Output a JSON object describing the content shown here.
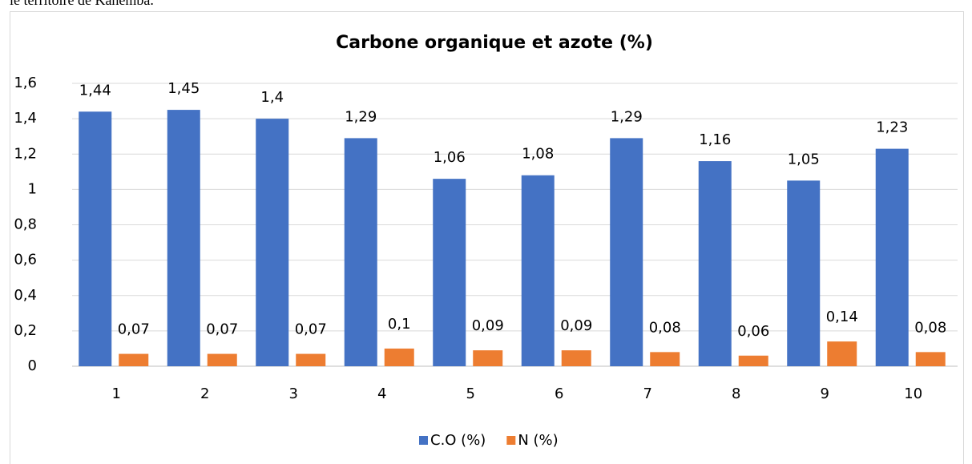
{
  "caption": "le territoire de Kahemba.",
  "chart_data": {
    "type": "bar",
    "title": "Carbone organique et azote (%)",
    "categories": [
      "1",
      "2",
      "3",
      "4",
      "5",
      "6",
      "7",
      "8",
      "9",
      "10"
    ],
    "series": [
      {
        "name": "C.O (%)",
        "color": "#4472c4",
        "values": [
          1.44,
          1.45,
          1.4,
          1.29,
          1.06,
          1.08,
          1.29,
          1.16,
          1.05,
          1.23
        ],
        "value_labels": [
          "1,44",
          "1,45",
          "1,4",
          "1,29",
          "1,06",
          "1,08",
          "1,29",
          "1,16",
          "1,05",
          "1,23"
        ]
      },
      {
        "name": "N (%)",
        "color": "#ed7d31",
        "values": [
          0.07,
          0.07,
          0.07,
          0.1,
          0.09,
          0.09,
          0.08,
          0.06,
          0.14,
          0.08
        ],
        "value_labels": [
          "0,07",
          "0,07",
          "0,07",
          "0,1",
          "0,09",
          "0,09",
          "0,08",
          "0,06",
          "0,14",
          "0,08"
        ]
      }
    ],
    "ylim": [
      0,
      1.6
    ],
    "yticks": [
      0,
      {
        "value": 0.2,
        "label": "0,2"
      },
      {
        "value": 0.4,
        "label": "0,4"
      },
      {
        "value": 0.6,
        "label": "0,6"
      },
      {
        "value": 0.8,
        "label": "0,8"
      },
      1,
      {
        "value": 1.2,
        "label": "1,2"
      },
      {
        "value": 1.4,
        "label": "1,4"
      },
      {
        "value": 1.6,
        "label": "1,6"
      }
    ],
    "grid": true,
    "legend": "bottom"
  }
}
